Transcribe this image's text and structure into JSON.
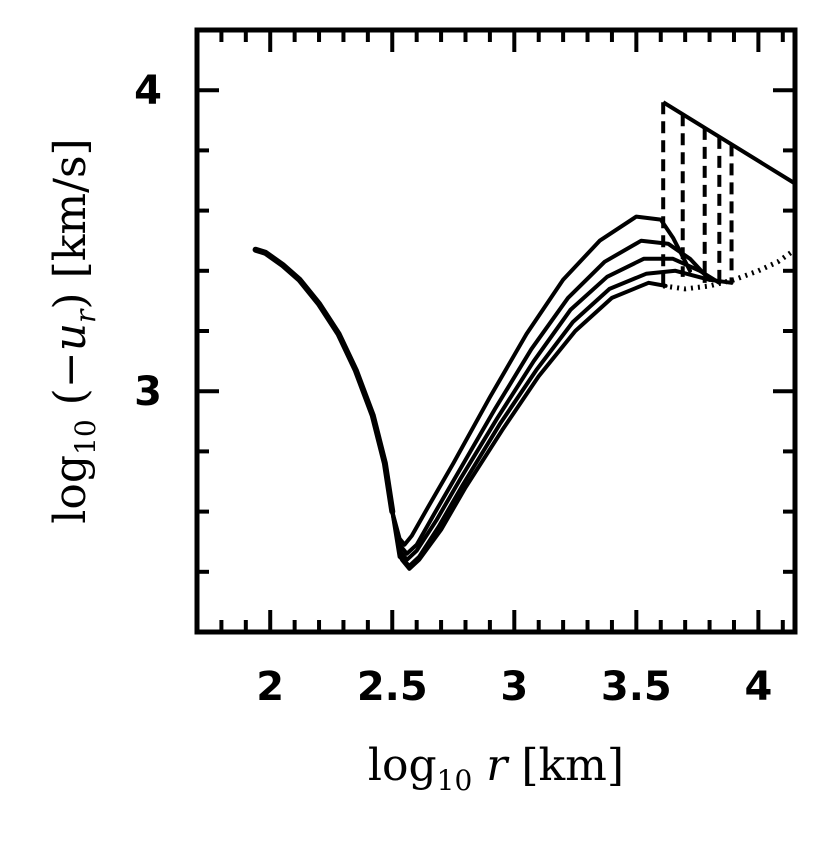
{
  "chart_data": {
    "type": "line",
    "xlabel": {
      "prefix": "log",
      "sub": "10",
      "var": "r",
      "unit": "[km]"
    },
    "ylabel": {
      "prefix": "log",
      "sub": "10",
      "open": "(−",
      "var": "u",
      "var_sub": "r",
      "close": ")",
      "unit": "[km/s]"
    },
    "xlim": [
      1.7,
      4.15
    ],
    "ylim": [
      2.2,
      4.2
    ],
    "xticks": [
      2,
      2.5,
      3,
      3.5,
      4
    ],
    "xtick_labels": [
      "2",
      "2.5",
      "3",
      "3.5",
      "4"
    ],
    "yticks": [
      3,
      4
    ],
    "ytick_labels": [
      "3",
      "4"
    ],
    "x_minor_step": 0.1,
    "y_minor_step": 0.2,
    "grid": false,
    "legend": "none",
    "common_branch": {
      "x": [
        1.94,
        1.98,
        2.05,
        2.12,
        2.2,
        2.28,
        2.35,
        2.42,
        2.47,
        2.5
      ],
      "y": [
        3.47,
        3.46,
        3.42,
        3.37,
        3.29,
        3.19,
        3.07,
        2.92,
        2.76,
        2.6
      ]
    },
    "curves": [
      {
        "x": [
          2.5,
          2.53,
          2.55,
          2.58,
          2.65,
          2.75,
          2.9,
          3.05,
          3.2,
          3.35,
          3.5,
          3.6,
          3.65,
          3.72
        ],
        "y": [
          2.6,
          2.51,
          2.49,
          2.52,
          2.62,
          2.76,
          2.98,
          3.19,
          3.37,
          3.5,
          3.58,
          3.57,
          3.51,
          3.4
        ]
      },
      {
        "x": [
          2.5,
          2.53,
          2.56,
          2.6,
          2.67,
          2.77,
          2.92,
          3.07,
          3.22,
          3.37,
          3.52,
          3.63,
          3.72,
          3.8
        ],
        "y": [
          2.6,
          2.49,
          2.46,
          2.49,
          2.59,
          2.73,
          2.94,
          3.14,
          3.31,
          3.43,
          3.5,
          3.49,
          3.44,
          3.37
        ]
      },
      {
        "x": [
          2.5,
          2.53,
          2.56,
          2.6,
          2.68,
          2.78,
          2.93,
          3.08,
          3.23,
          3.38,
          3.53,
          3.65,
          3.76,
          3.84
        ],
        "y": [
          2.6,
          2.47,
          2.44,
          2.47,
          2.57,
          2.71,
          2.91,
          3.1,
          3.27,
          3.38,
          3.44,
          3.44,
          3.4,
          3.36
        ]
      },
      {
        "x": [
          2.5,
          2.53,
          2.57,
          2.61,
          2.69,
          2.79,
          2.94,
          3.09,
          3.24,
          3.39,
          3.54,
          3.66,
          3.8,
          3.89
        ],
        "y": [
          2.6,
          2.45,
          2.42,
          2.45,
          2.55,
          2.69,
          2.89,
          3.07,
          3.23,
          3.34,
          3.39,
          3.4,
          3.37,
          3.36
        ]
      },
      {
        "x": [
          2.5,
          2.54,
          2.57,
          2.61,
          2.7,
          2.8,
          2.95,
          3.1,
          3.25,
          3.4,
          3.55,
          3.62
        ],
        "y": [
          2.6,
          2.44,
          2.41,
          2.44,
          2.54,
          2.68,
          2.87,
          3.05,
          3.2,
          3.31,
          3.36,
          3.35
        ]
      }
    ],
    "shock_line": {
      "x": [
        3.61,
        4.15
      ],
      "y": [
        3.96,
        3.69
      ]
    },
    "shock_jumps": [
      {
        "x": 3.61,
        "y_low": 3.35
      },
      {
        "x": 3.69,
        "y_low": 3.38
      },
      {
        "x": 3.78,
        "y_low": 3.36
      },
      {
        "x": 3.84,
        "y_low": 3.35
      },
      {
        "x": 3.89,
        "y_low": 3.36
      }
    ],
    "dotted_curve": {
      "x": [
        3.61,
        3.7,
        3.8,
        3.9,
        4.0,
        4.08,
        4.15
      ],
      "y": [
        3.35,
        3.34,
        3.35,
        3.37,
        3.4,
        3.43,
        3.47
      ]
    }
  }
}
